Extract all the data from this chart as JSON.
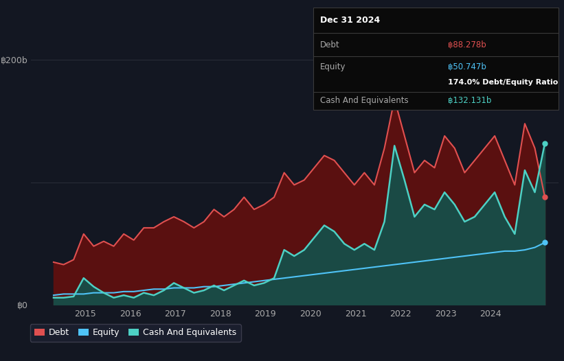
{
  "background_color": "#131722",
  "plot_bg_color": "#131722",
  "grid_color": "#2a2e39",
  "title_box": {
    "date": "Dec 31 2024",
    "debt_label": "Debt",
    "debt_value": "฿88.278b",
    "equity_label": "Equity",
    "equity_value": "฿50.747b",
    "ratio_text": "174.0% Debt/Equity Ratio",
    "cash_label": "Cash And Equivalents",
    "cash_value": "฿132.131b"
  },
  "legend": {
    "debt_label": "Debt",
    "equity_label": "Equity",
    "cash_label": "Cash And Equivalents"
  },
  "colors": {
    "debt": "#e05050",
    "equity": "#4fc3f7",
    "cash": "#4dd0c4",
    "debt_fill": "#5a1010",
    "equity_fill": "#0d2035",
    "cash_fill": "#1a4a45"
  },
  "ylim": [
    0,
    215
  ],
  "xticks": [
    2015,
    2016,
    2017,
    2018,
    2019,
    2020,
    2021,
    2022,
    2023,
    2024
  ],
  "xlim_start": 2013.8,
  "xlim_end": 2025.5,
  "debt": [
    35,
    33,
    37,
    58,
    48,
    52,
    48,
    58,
    53,
    63,
    63,
    68,
    72,
    68,
    63,
    68,
    78,
    72,
    78,
    88,
    78,
    82,
    88,
    108,
    98,
    102,
    112,
    122,
    118,
    108,
    98,
    108,
    98,
    128,
    168,
    138,
    108,
    118,
    112,
    138,
    128,
    108,
    118,
    128,
    138,
    118,
    98,
    148,
    128,
    88
  ],
  "equity": [
    8,
    9,
    9,
    9,
    10,
    10,
    10,
    11,
    11,
    12,
    13,
    13,
    14,
    14,
    14,
    15,
    15,
    16,
    17,
    18,
    19,
    20,
    21,
    22,
    23,
    24,
    25,
    26,
    27,
    28,
    29,
    30,
    31,
    32,
    33,
    34,
    35,
    36,
    37,
    38,
    39,
    40,
    41,
    42,
    43,
    44,
    44,
    45,
    47,
    51
  ],
  "cash": [
    6,
    6,
    7,
    22,
    15,
    10,
    6,
    8,
    6,
    10,
    8,
    12,
    18,
    14,
    10,
    12,
    16,
    12,
    16,
    20,
    16,
    18,
    22,
    45,
    40,
    45,
    55,
    65,
    60,
    50,
    45,
    50,
    45,
    68,
    130,
    102,
    72,
    82,
    78,
    92,
    82,
    68,
    72,
    82,
    92,
    72,
    58,
    110,
    92,
    132
  ]
}
